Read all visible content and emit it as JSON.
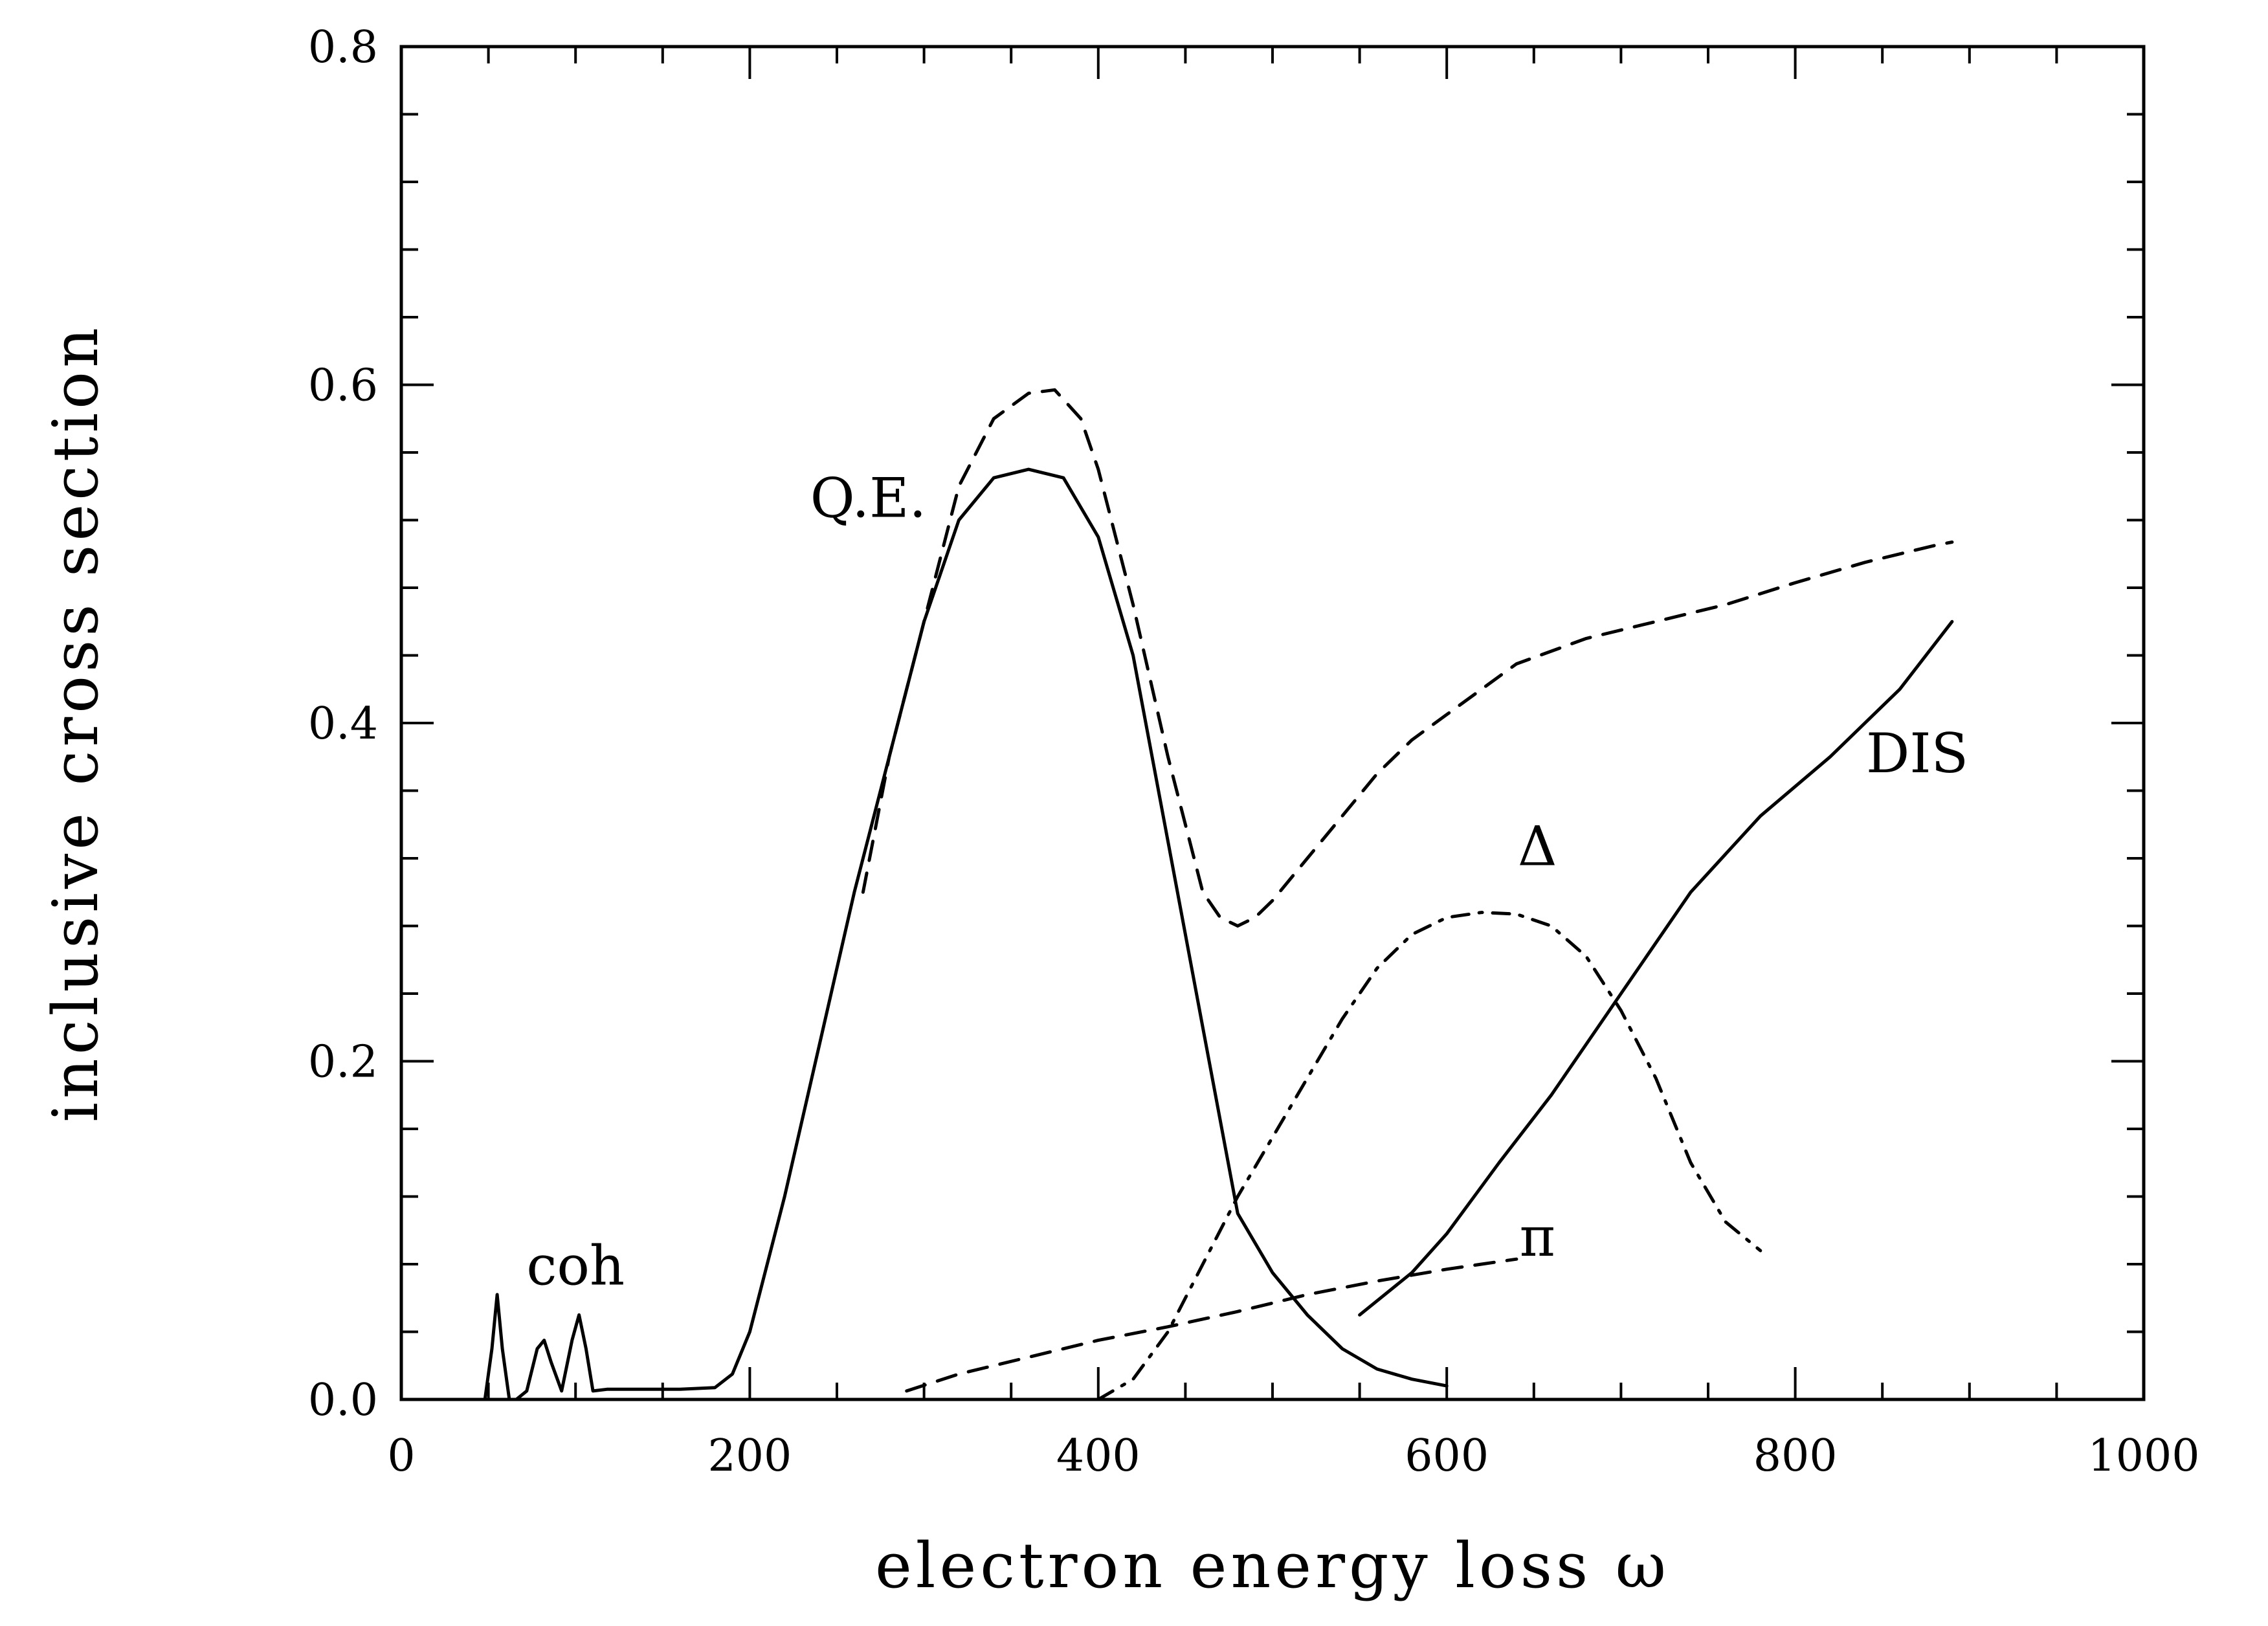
{
  "chart_data": {
    "type": "line",
    "title": "",
    "xlabel": "electron energy loss ω",
    "ylabel": "inclusive cross section",
    "xlim": [
      0,
      1000
    ],
    "ylim": [
      0,
      0.8
    ],
    "x_ticks": [
      0,
      200,
      400,
      600,
      800,
      1000
    ],
    "x_tick_labels": [
      "0",
      "200",
      "400",
      "600",
      "800",
      "1000"
    ],
    "y_ticks": [
      0,
      0.2,
      0.4,
      0.6,
      0.8
    ],
    "y_tick_labels": [
      "0.0",
      "0.2",
      "0.4",
      "0.6",
      "0.8"
    ],
    "x_minor_step": 50,
    "y_minor_step": 0.04,
    "grid": false,
    "legend": "none",
    "series": [
      {
        "style": "solid",
        "x": [
          44,
          48,
          52,
          55,
          58,
          62,
          66,
          72,
          78,
          82,
          86,
          92,
          98,
          102,
          106,
          110,
          118,
          140,
          160,
          180,
          190,
          200,
          220,
          240,
          260,
          280,
          300,
          320,
          340,
          360,
          380,
          400,
          420,
          440,
          460,
          480,
          500,
          520,
          540,
          560,
          580,
          600
        ],
        "y": [
          0.0,
          0.0,
          0.03,
          0.062,
          0.03,
          0.0,
          0.0,
          0.005,
          0.03,
          0.035,
          0.022,
          0.005,
          0.035,
          0.05,
          0.03,
          0.005,
          0.006,
          0.006,
          0.006,
          0.007,
          0.015,
          0.04,
          0.12,
          0.21,
          0.3,
          0.38,
          0.46,
          0.52,
          0.545,
          0.55,
          0.545,
          0.51,
          0.44,
          0.33,
          0.22,
          0.11,
          0.075,
          0.05,
          0.03,
          0.018,
          0.012,
          0.008
        ]
      },
      {
        "style": "dashed",
        "x": [
          265,
          280,
          300,
          320,
          340,
          360,
          375,
          390,
          400,
          420,
          440,
          460,
          470,
          480,
          490,
          500,
          520,
          540,
          560,
          580,
          600,
          620,
          640,
          680,
          720,
          760,
          800,
          840,
          880,
          890
        ],
        "y": [
          0.3,
          0.38,
          0.46,
          0.54,
          0.58,
          0.595,
          0.597,
          0.58,
          0.55,
          0.47,
          0.38,
          0.3,
          0.285,
          0.28,
          0.285,
          0.295,
          0.32,
          0.345,
          0.37,
          0.39,
          0.405,
          0.42,
          0.435,
          0.45,
          0.46,
          0.47,
          0.483,
          0.495,
          0.505,
          0.507
        ]
      },
      {
        "style": "dash-dot",
        "x": [
          400,
          420,
          440,
          460,
          480,
          500,
          520,
          540,
          560,
          580,
          600,
          620,
          640,
          660,
          680,
          700,
          720,
          740,
          760,
          780
        ],
        "y": [
          0.0,
          0.012,
          0.04,
          0.08,
          0.12,
          0.155,
          0.19,
          0.225,
          0.255,
          0.275,
          0.285,
          0.288,
          0.287,
          0.28,
          0.262,
          0.23,
          0.19,
          0.14,
          0.105,
          0.088
        ]
      },
      {
        "style": "dashed",
        "x": [
          290,
          320,
          360,
          400,
          440,
          480,
          520,
          560,
          600,
          640
        ],
        "y": [
          0.005,
          0.015,
          0.025,
          0.035,
          0.043,
          0.052,
          0.062,
          0.07,
          0.077,
          0.083
        ]
      },
      {
        "style": "solid",
        "x": [
          550,
          580,
          600,
          630,
          660,
          700,
          740,
          780,
          820,
          860,
          890
        ],
        "y": [
          0.05,
          0.075,
          0.098,
          0.14,
          0.18,
          0.24,
          0.3,
          0.345,
          0.38,
          0.42,
          0.46
        ]
      }
    ],
    "annotations": [
      {
        "text": "coh",
        "x": 100,
        "y": 0.068
      },
      {
        "text": "Q.E.",
        "x": 268,
        "y": 0.522
      },
      {
        "text": "Δ",
        "x": 652,
        "y": 0.316
      },
      {
        "text": "DIS",
        "x": 870,
        "y": 0.371
      },
      {
        "text": "π",
        "x": 652,
        "y": 0.085
      }
    ]
  }
}
